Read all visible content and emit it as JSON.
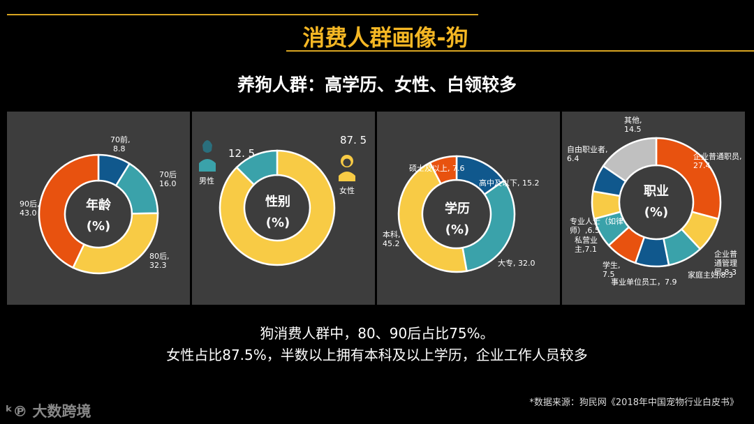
{
  "header": {
    "title": "消费人群画像-狗",
    "subtitle": "养狗人群：高学历、女性、白领较多"
  },
  "summary": {
    "line1": "狗消费人群中，80、90后占比75%。",
    "line2": "女性占比87.5%，半数以上拥有本科及以上学历，企业工作人员较多"
  },
  "source": "*数据来源：狗民网《2018年中国宠物行业白皮书》",
  "logo": "大数跨境",
  "colors": {
    "orange": "#e8520f",
    "blue": "#10588d",
    "teal": "#3aa2aa",
    "yellow": "#f8cb45",
    "gray": "#c0c0c0",
    "panel": "#3d3d3d",
    "title": "#f5b724"
  },
  "chart_data": [
    {
      "type": "pie",
      "center_label": "年龄",
      "center_unit": "(%)",
      "slices": [
        {
          "label": "70前,",
          "value": 8.8,
          "value_text": "8.8",
          "color": "#10588d"
        },
        {
          "label": "70后",
          "value": 16.0,
          "value_text": "16.0",
          "color": "#3aa2aa"
        },
        {
          "label": "80后,",
          "value": 32.3,
          "value_text": "32.3",
          "color": "#f8cb45"
        },
        {
          "label": "90后,",
          "value": 43.0,
          "value_text": "43.0",
          "color": "#e8520f"
        }
      ]
    },
    {
      "type": "pie",
      "center_label": "性别",
      "center_unit": "(%)",
      "slices": [
        {
          "label": "女性",
          "value": 87.5,
          "value_text": "87. 5",
          "color": "#f8cb45"
        },
        {
          "label": "男性",
          "value": 12.5,
          "value_text": "12. 5",
          "color": "#3aa2aa"
        }
      ]
    },
    {
      "type": "pie",
      "center_label": "学历",
      "center_unit": "(%)",
      "slices": [
        {
          "label": "高中及以下, 15.2",
          "value": 15.2,
          "color": "#10588d"
        },
        {
          "label": "大专, 32.0",
          "value": 32.0,
          "color": "#3aa2aa"
        },
        {
          "label": "本科,",
          "value": 45.2,
          "value_text": "45.2",
          "color": "#f8cb45"
        },
        {
          "label": "硕士及以上, 7.6",
          "value": 7.6,
          "color": "#e8520f"
        }
      ]
    },
    {
      "type": "pie",
      "center_label": "职业",
      "center_unit": "(%)",
      "slices": [
        {
          "label": "企业普通职员,",
          "value": 27.4,
          "value_text": "27.4",
          "color": "#e8520f"
        },
        {
          "label": "企业普通管理层,",
          "value": 8.3,
          "value_text": "8.3",
          "color": "#f8cb45"
        },
        {
          "label": "家庭主妇,",
          "value": 8.3,
          "value_text": "8.3",
          "color": "#3aa2aa"
        },
        {
          "label": "事业单位员工，",
          "value": 7.9,
          "value_text": "7.9",
          "color": "#10588d"
        },
        {
          "label": "学生,",
          "value": 7.5,
          "value_text": "7.5",
          "color": "#e8520f"
        },
        {
          "label": "私营业主,",
          "value": 7.1,
          "value_text": "7.1",
          "color": "#3aa2aa"
        },
        {
          "label": "专业人士（如律师）,",
          "value": 6.5,
          "value_text": "6.5",
          "color": "#f8cb45"
        },
        {
          "label": "自由职业者,",
          "value": 6.4,
          "value_text": "6.4",
          "color": "#10588d"
        },
        {
          "label": "其他,",
          "value": 14.5,
          "value_text": "14.5",
          "color": "#c0c0c0"
        }
      ]
    }
  ]
}
